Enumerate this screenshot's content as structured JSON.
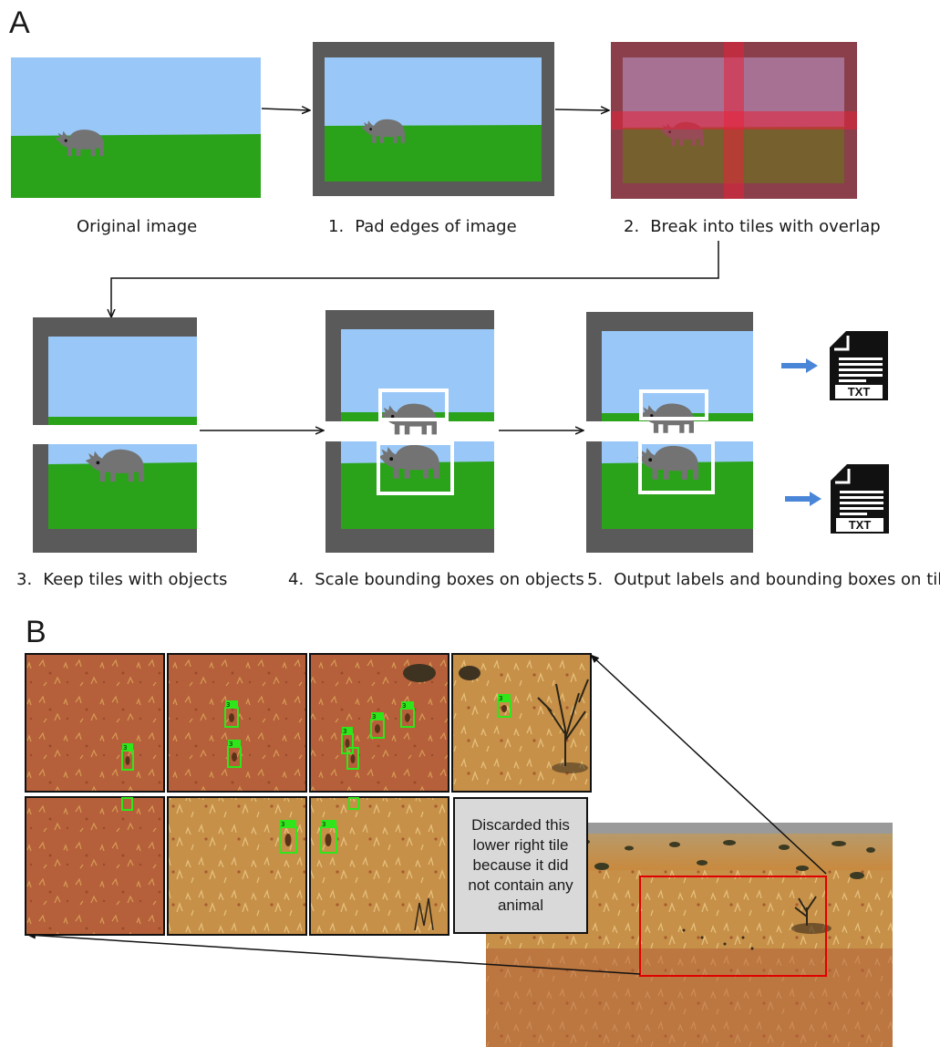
{
  "panel_a": {
    "letter": "A",
    "steps": [
      {
        "num": "",
        "text": "Original image"
      },
      {
        "num": "1.",
        "text": "Pad edges of image"
      },
      {
        "num": "2.",
        "text": "Break into tiles with overlap"
      },
      {
        "num": "3.",
        "text": "Keep tiles with objects"
      },
      {
        "num": "4.",
        "text": "Scale bounding boxes on objects"
      },
      {
        "num": "5.",
        "text": "Output labels and bounding boxes on tiles"
      }
    ],
    "file_label": "TXT"
  },
  "panel_b": {
    "letter": "B",
    "box_label": "3",
    "callout": "Discarded this lower right tile because it did not contain any animal"
  },
  "colors": {
    "sky": "#99c8f8",
    "grass": "#2aa31a",
    "pad": "#5a5a5a",
    "rhino": "#737373",
    "overlap": "#c0283c",
    "detect_box": "#2ee619",
    "arrow_blue": "#4a86d8",
    "selection": "#e00000"
  }
}
